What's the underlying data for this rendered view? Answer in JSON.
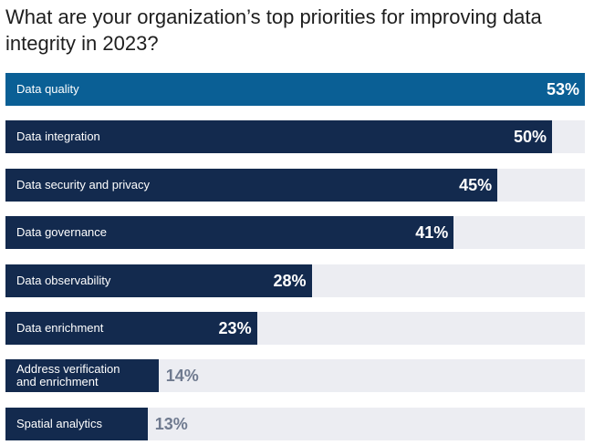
{
  "title": "What are your organization’s top priorities for improving data integrity in 2023?",
  "colors": {
    "bar": "#132a4e",
    "highlight": "#0a5f95",
    "track": "#ecedf2",
    "outside_value": "#6f7a8f"
  },
  "chart_data": {
    "type": "bar",
    "orientation": "horizontal",
    "title": "What are your organization’s top priorities for improving data integrity in 2023?",
    "xlim": [
      0,
      53
    ],
    "categories": [
      "Data quality",
      "Data integration",
      "Data security and privacy",
      "Data governance",
      "Data observability",
      "Data enrichment",
      "Address verification\nand enrichment",
      "Spatial analytics"
    ],
    "values": [
      53,
      50,
      45,
      41,
      28,
      23,
      14,
      13
    ],
    "value_labels": [
      "53%",
      "50%",
      "45%",
      "41%",
      "28%",
      "23%",
      "14%",
      "13%"
    ],
    "highlight_index": 0
  }
}
